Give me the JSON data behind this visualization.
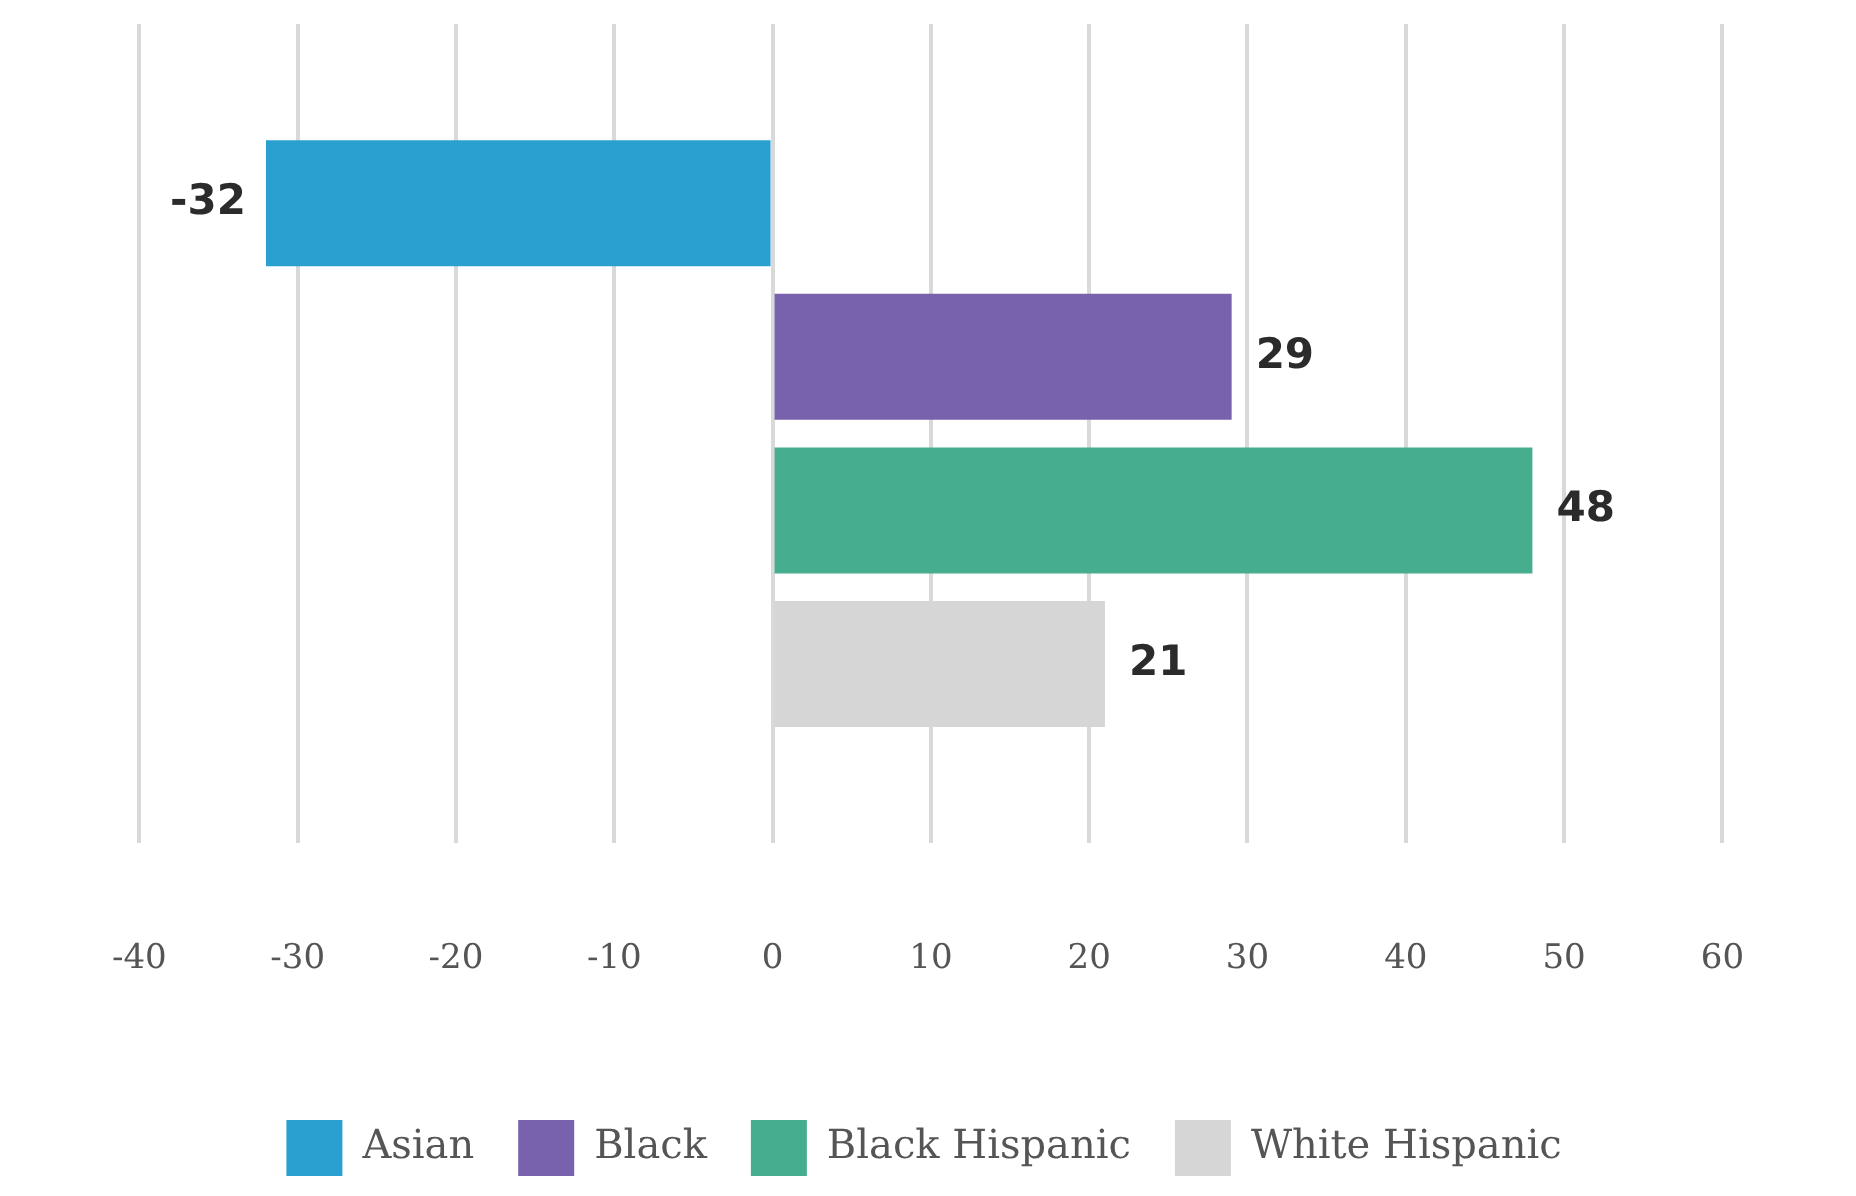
{
  "chart_data": {
    "type": "bar",
    "orientation": "horizontal",
    "categories": [
      null
    ],
    "series": [
      {
        "name": "Asian",
        "color": "#29a0d0",
        "values": [
          -32
        ]
      },
      {
        "name": "Black",
        "color": "#7862ad",
        "values": [
          29
        ]
      },
      {
        "name": "Black Hispanic",
        "color": "#46ae8f",
        "values": [
          48
        ]
      },
      {
        "name": "White Hispanic",
        "color": "#d6d6d6",
        "values": [
          21
        ]
      }
    ],
    "xlim": [
      -40,
      60
    ],
    "xticks": [
      -40,
      -30,
      -20,
      -10,
      0,
      10,
      20,
      30,
      40,
      50,
      60
    ],
    "grid": "x",
    "legend": "bottom",
    "data_labels": true
  }
}
